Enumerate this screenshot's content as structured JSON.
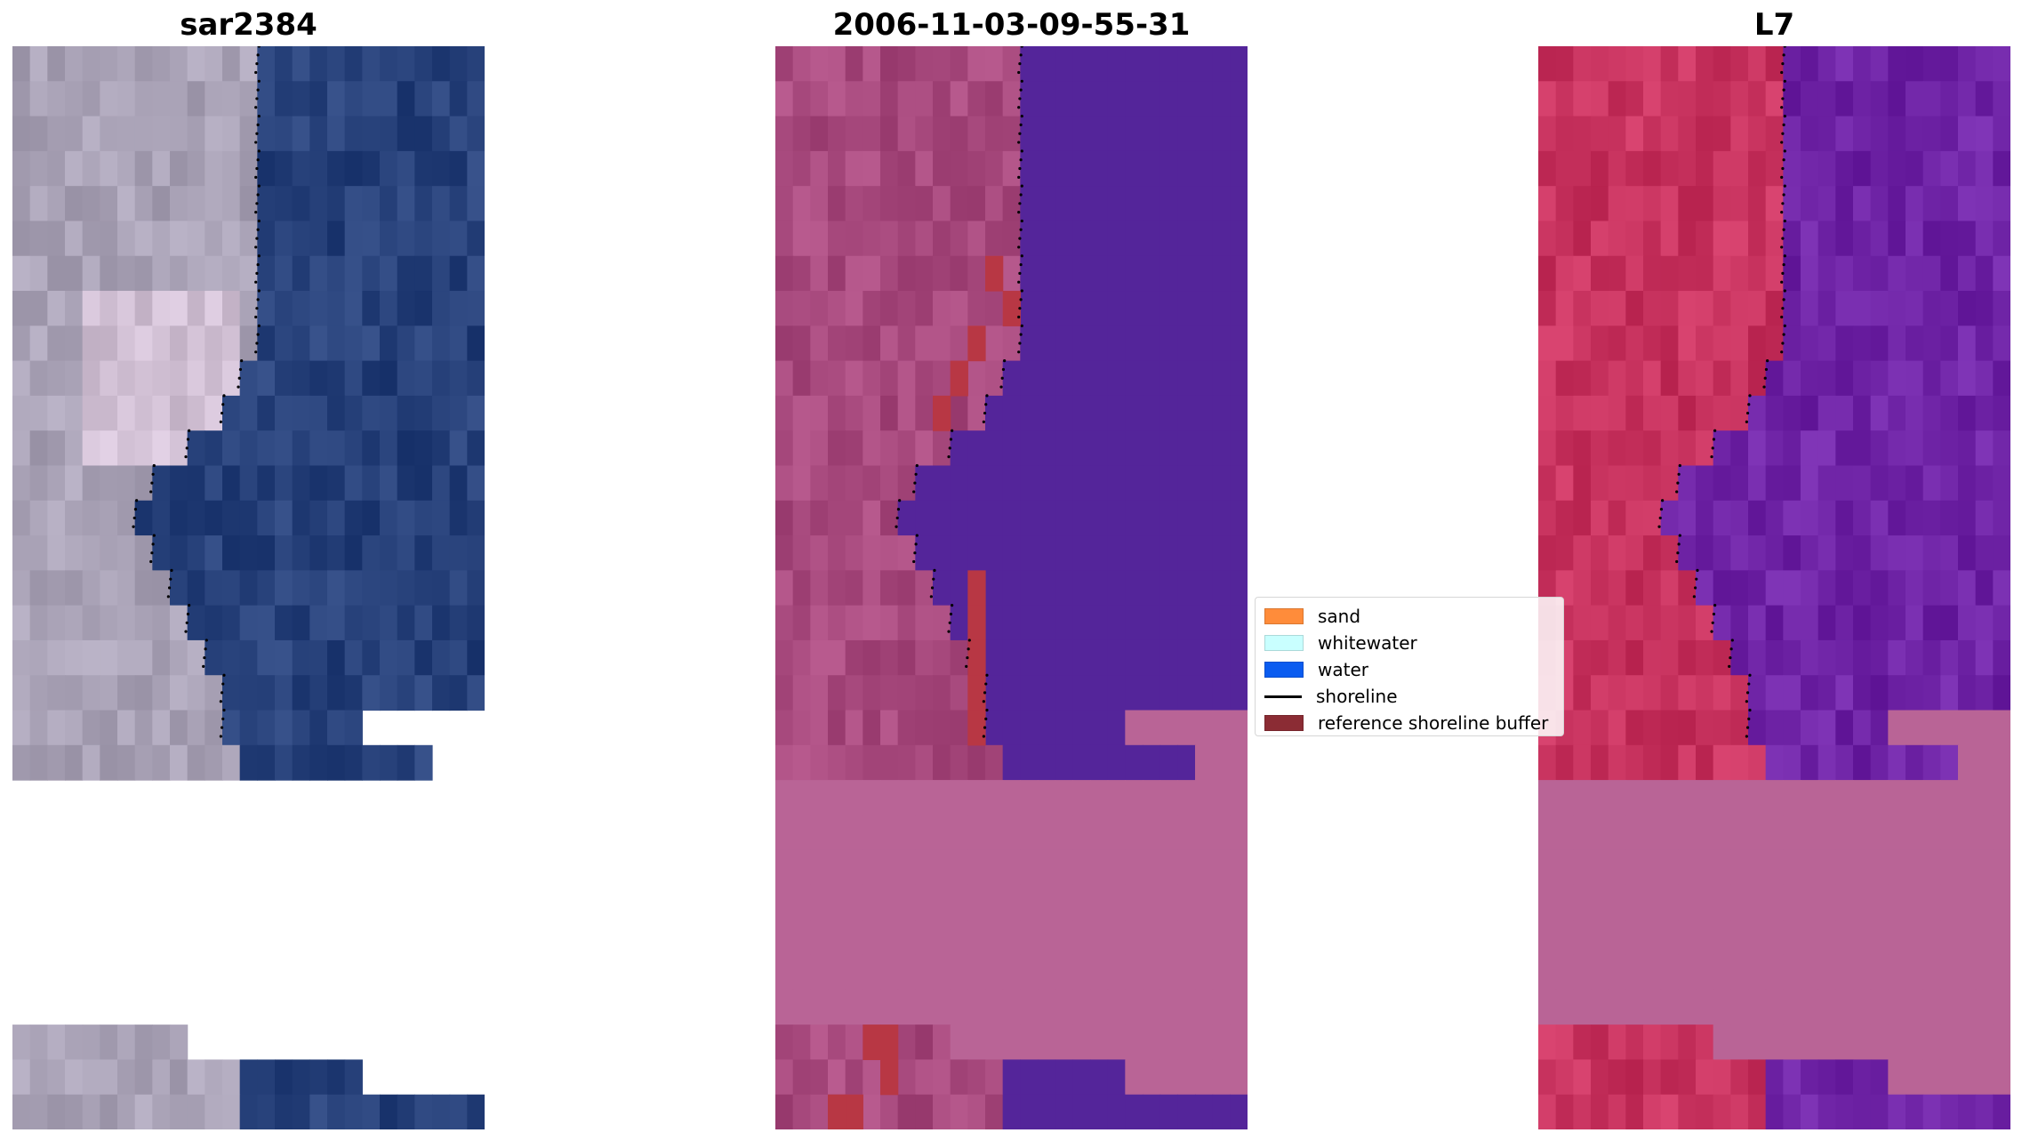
{
  "panels": [
    {
      "title": "sar2384",
      "style": "rgb"
    },
    {
      "title": "2006-11-03-09-55-31",
      "style": "classified"
    },
    {
      "title": "L7",
      "style": "index"
    }
  ],
  "legend": {
    "items": [
      {
        "label": "sand",
        "color": "#ff8c3a",
        "kind": "patch"
      },
      {
        "label": "whitewater",
        "color": "#c9ffff",
        "kind": "patch"
      },
      {
        "label": "water",
        "color": "#0a5cf0",
        "kind": "patch"
      },
      {
        "label": "shoreline",
        "color": "#000000",
        "kind": "line"
      },
      {
        "label": "reference shoreline buffer",
        "color": "#8b2c34",
        "kind": "patch"
      }
    ]
  },
  "colors": {
    "rgb_land": "#a9a2b6",
    "rgb_water": "#27417a",
    "class_land": "#a84a7e",
    "class_water": "#54259a",
    "class_nodata": "#b96496",
    "index_land": "#c8335f",
    "index_water": "#6f24a6",
    "buffer": "#b83744",
    "shoreline": "#000000"
  }
}
